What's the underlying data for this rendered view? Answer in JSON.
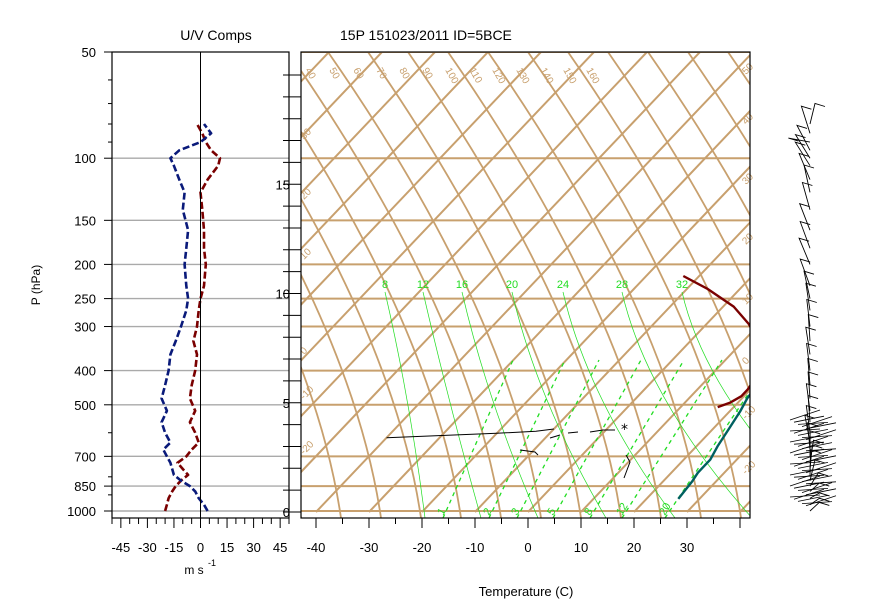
{
  "figure": {
    "title_left": "U/V Comps",
    "title_main": "15P 151023/2011 ID=5BCE",
    "colors": {
      "u_wind": "#7a0000",
      "v_wind": "#0a1a7a",
      "temperature": "#7a0000",
      "dewpoint": "#006060",
      "background_lines": "#c8a06e",
      "mixing_ratio": "#22dd22"
    }
  },
  "chart_data": [
    {
      "type": "line",
      "title": "U/V Comps",
      "xlabel": "m s",
      "xlabel_sup": "-1",
      "ylabel": "P (hPa)",
      "xlim": [
        -50,
        50
      ],
      "ylim_pressure_hpa": [
        1000,
        50
      ],
      "y_scale": "log",
      "x_ticks": [
        -45,
        -30,
        -15,
        0,
        15,
        30,
        45
      ],
      "x_tick_labels": [
        "-45",
        "-30",
        "-15",
        "0",
        "15",
        "30",
        "45"
      ],
      "y_ticks": [
        1000,
        850,
        700,
        500,
        400,
        300,
        250,
        200,
        150,
        100,
        50
      ],
      "y_tick_labels": [
        "1000",
        "850",
        "700",
        "500",
        "400",
        "300",
        "250",
        "200",
        "150",
        "100",
        "50"
      ],
      "grid": true,
      "series": [
        {
          "key": "u",
          "color": "#7a0000",
          "points": [
            [
              1000,
              -20
            ],
            [
              960,
              -19
            ],
            [
              920,
              -18
            ],
            [
              880,
              -16
            ],
            [
              850,
              -14
            ],
            [
              820,
              -11
            ],
            [
              790,
              -7
            ],
            [
              760,
              -10
            ],
            [
              730,
              -13
            ],
            [
              700,
              -8
            ],
            [
              670,
              -5
            ],
            [
              640,
              -1
            ],
            [
              600,
              -3
            ],
            [
              560,
              -6
            ],
            [
              520,
              -3
            ],
            [
              480,
              -6
            ],
            [
              440,
              -5
            ],
            [
              400,
              -3
            ],
            [
              360,
              -2
            ],
            [
              330,
              -4
            ],
            [
              300,
              -2
            ],
            [
              270,
              -1
            ],
            [
              250,
              0
            ],
            [
              230,
              2
            ],
            [
              200,
              3
            ],
            [
              180,
              2
            ],
            [
              160,
              2
            ],
            [
              140,
              1
            ],
            [
              125,
              0
            ],
            [
              115,
              4
            ],
            [
              105,
              10
            ],
            [
              100,
              11
            ],
            [
              95,
              6
            ],
            [
              90,
              3
            ],
            [
              85,
              1
            ],
            [
              80,
              -2
            ]
          ]
        },
        {
          "key": "v",
          "color": "#0a1a7a",
          "points": [
            [
              1000,
              4
            ],
            [
              960,
              2
            ],
            [
              920,
              -1
            ],
            [
              880,
              -3
            ],
            [
              850,
              -6
            ],
            [
              820,
              -11
            ],
            [
              790,
              -15
            ],
            [
              760,
              -16
            ],
            [
              730,
              -17
            ],
            [
              700,
              -19
            ],
            [
              670,
              -21
            ],
            [
              640,
              -17
            ],
            [
              600,
              -20
            ],
            [
              560,
              -22
            ],
            [
              520,
              -19
            ],
            [
              480,
              -22
            ],
            [
              440,
              -20
            ],
            [
              400,
              -18
            ],
            [
              360,
              -17
            ],
            [
              330,
              -14
            ],
            [
              300,
              -11
            ],
            [
              270,
              -8
            ],
            [
              250,
              -7
            ],
            [
              230,
              -8
            ],
            [
              200,
              -9
            ],
            [
              180,
              -8
            ],
            [
              160,
              -7
            ],
            [
              140,
              -10
            ],
            [
              125,
              -9
            ],
            [
              115,
              -12
            ],
            [
              105,
              -15
            ],
            [
              100,
              -17
            ],
            [
              95,
              -12
            ],
            [
              90,
              0
            ],
            [
              85,
              6
            ],
            [
              80,
              2
            ]
          ]
        }
      ]
    },
    {
      "type": "line",
      "title": "15P 151023/2011 ID=5BCE",
      "xlabel": "Temperature (C)",
      "xlim": [
        -43,
        39
      ],
      "x_ticks": [
        -40,
        -30,
        -20,
        -10,
        0,
        10,
        20,
        30
      ],
      "x_tick_labels": [
        "-40",
        "-30",
        "-20",
        "-10",
        "0",
        "10",
        "20",
        "30"
      ],
      "height_ticks_km": [
        0,
        5,
        10,
        15
      ],
      "height_tick_labels": [
        "0",
        "5",
        "10",
        "15"
      ],
      "isotherm_labels": [
        "50",
        "40",
        "30",
        "20",
        "10",
        "0",
        "-10",
        "-20",
        "-30"
      ],
      "theta_labels": [
        "40",
        "50",
        "60",
        "70",
        "80",
        "90",
        "100",
        "110",
        "120",
        "130",
        "140",
        "150",
        "160"
      ],
      "mixing_ratio_labels_top": [
        "8",
        "12",
        "16",
        "20",
        "24",
        "28",
        "32"
      ],
      "mixing_ratio_labels_bottom": [
        "1",
        "2",
        "3",
        "5",
        "8",
        "12",
        "20"
      ],
      "grid": true,
      "series": [
        {
          "key": "temperature",
          "color": "#7a0000",
          "points": [
            [
              -13,
              10.8
            ],
            [
              -6,
              10.2
            ],
            [
              2,
              9.4
            ],
            [
              8,
              8.6
            ],
            [
              13,
              7.8
            ],
            [
              16,
              7.2
            ],
            [
              18,
              6.6
            ],
            [
              19,
              6.1
            ],
            [
              19.5,
              5.6
            ],
            [
              19.5,
              5.3
            ],
            [
              18.5,
              5.0
            ],
            [
              17,
              4.8
            ]
          ]
        },
        {
          "key": "dewpoint",
          "color": "#006060",
          "points": [
            [
              13,
              18.2
            ],
            [
              10,
              17.9
            ],
            [
              9,
              17.6
            ],
            [
              4,
              17.4
            ],
            [
              2,
              16.6
            ],
            [
              -3,
              16.5
            ],
            [
              -5,
              16.4
            ],
            [
              -5.5,
              15.5
            ],
            [
              -4,
              14.5
            ],
            [
              0,
              13.4
            ],
            [
              3,
              12.7
            ],
            [
              6,
              11.8
            ],
            [
              9,
              11.1
            ],
            [
              12,
              10.4
            ],
            [
              14,
              9.6
            ],
            [
              16,
              8.8
            ],
            [
              18,
              8.0
            ],
            [
              19.5,
              7.2
            ],
            [
              20.5,
              6.4
            ],
            [
              20.5,
              5.8
            ],
            [
              21,
              5.2
            ],
            [
              22,
              4.6
            ],
            [
              23,
              3.8
            ],
            [
              24,
              3.0
            ],
            [
              25,
              2.4
            ],
            [
              25,
              1.8
            ],
            [
              25.5,
              1.4
            ],
            [
              26,
              0.6
            ]
          ]
        },
        {
          "key": "parcel",
          "color": "#000000",
          "points": [
            [
              -40,
              3.4
            ],
            [
              -30,
              3.5
            ],
            [
              -20,
              3.6
            ],
            [
              -13,
              3.7
            ],
            [
              -10,
              3.8
            ]
          ]
        }
      ]
    }
  ]
}
